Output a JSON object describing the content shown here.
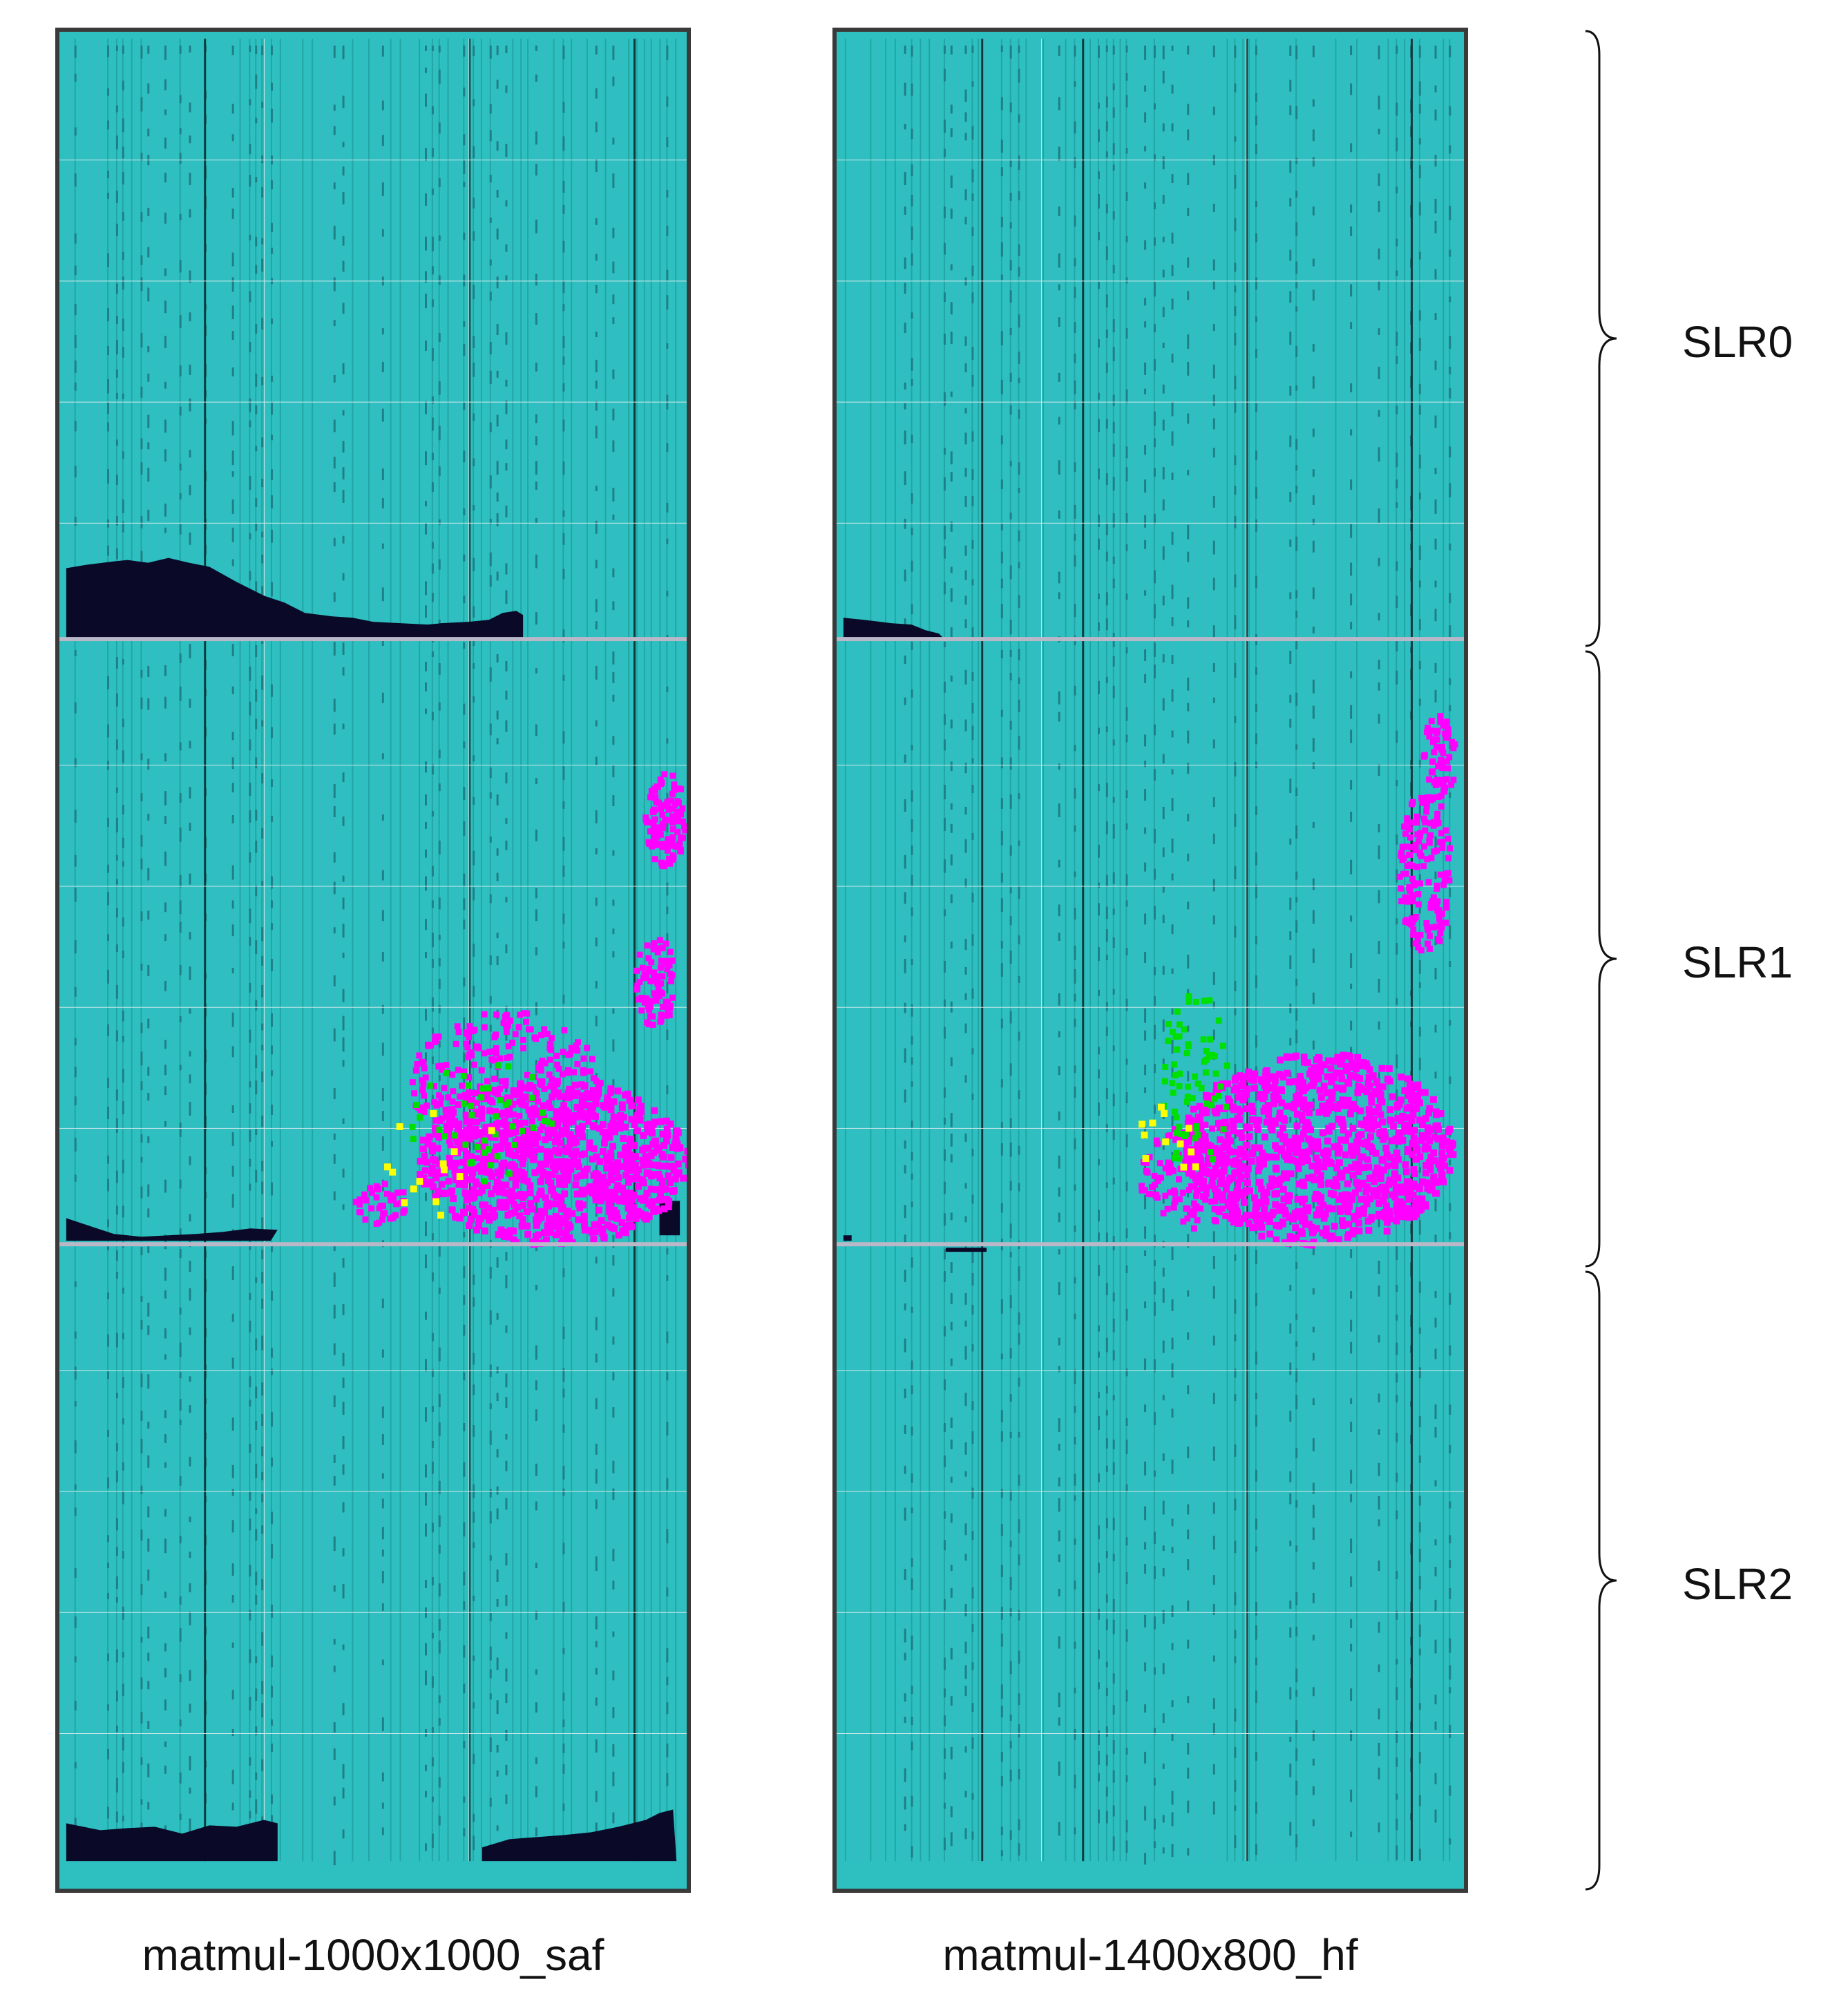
{
  "panels": [
    {
      "caption": "matmul-1000x1000_saf"
    },
    {
      "caption": "matmul-1400x800_hf"
    }
  ],
  "regions": [
    {
      "label": "SLR0"
    },
    {
      "label": "SLR1"
    },
    {
      "label": "SLR2"
    }
  ],
  "colors": {
    "fabric": "#2ec0c0",
    "column_dark": "#0c3a3a",
    "column_mid": "#1f8e8e",
    "grid_line": "#cfe8e8",
    "slr_boundary": "#b8b8c8",
    "unused": "#0a0a28",
    "highlight_magenta": "#ff00ff",
    "highlight_green": "#00e000",
    "highlight_yellow": "#ffff00",
    "frame": "#3a3a3a"
  }
}
